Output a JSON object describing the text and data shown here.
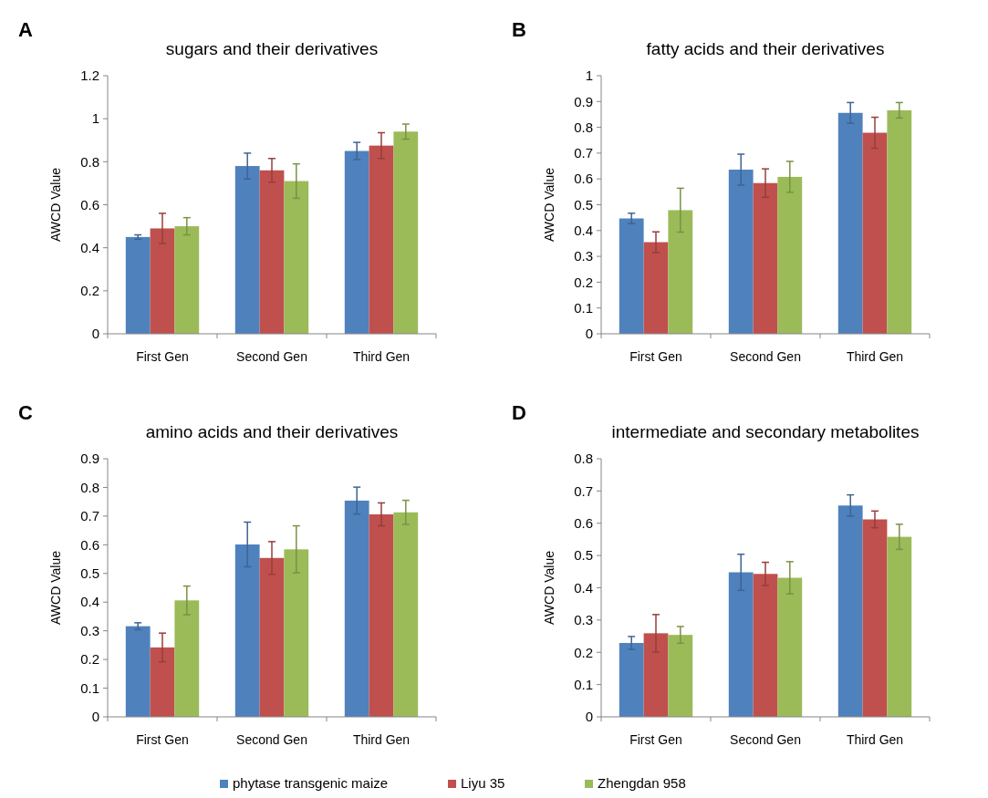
{
  "chart_data": [
    {
      "type": "bar",
      "title": "sugars and their derivatives",
      "ylabel": "AWCD Value",
      "annotations": [
        "A"
      ],
      "categories": [
        "First Gen",
        "Second Gen",
        "Third Gen"
      ],
      "ylim": [
        0,
        1.2
      ],
      "yticks": [
        0,
        0.2,
        0.4,
        0.6,
        0.8,
        1,
        1.2
      ],
      "grid": false,
      "legend": "bottom",
      "series": [
        {
          "name": "phytase transgenic maize",
          "color": "#4f81bd",
          "values": [
            0.45,
            0.78,
            0.85
          ],
          "errors": [
            0.01,
            0.06,
            0.04
          ]
        },
        {
          "name": "Liyu 35",
          "color": "#c0504d",
          "values": [
            0.49,
            0.76,
            0.875
          ],
          "errors": [
            0.07,
            0.055,
            0.06
          ]
        },
        {
          "name": "Zhengdan 958",
          "color": "#9bbb59",
          "values": [
            0.5,
            0.71,
            0.94
          ],
          "errors": [
            0.04,
            0.08,
            0.035
          ]
        }
      ]
    },
    {
      "type": "bar",
      "title": "fatty acids and their derivatives",
      "ylabel": "AWCD Value",
      "annotations": [
        "B"
      ],
      "categories": [
        "First Gen",
        "Second Gen",
        "Third Gen"
      ],
      "ylim": [
        0,
        1
      ],
      "yticks": [
        0,
        0.1,
        0.2,
        0.3,
        0.4,
        0.5,
        0.6,
        0.7,
        0.8,
        0.9,
        1
      ],
      "grid": false,
      "legend": false,
      "series": [
        {
          "color": "#4f81bd",
          "values": [
            0.447,
            0.636,
            0.856
          ],
          "errors": [
            0.02,
            0.06,
            0.04
          ]
        },
        {
          "color": "#c0504d",
          "values": [
            0.355,
            0.584,
            0.779
          ],
          "errors": [
            0.04,
            0.055,
            0.06
          ]
        },
        {
          "color": "#9bbb59",
          "values": [
            0.479,
            0.608,
            0.866
          ],
          "errors": [
            0.085,
            0.06,
            0.03
          ]
        }
      ]
    },
    {
      "type": "bar",
      "title": "amino acids and their derivatives",
      "ylabel": "AWCD Value",
      "annotations": [
        "C"
      ],
      "categories": [
        "First Gen",
        "Second Gen",
        "Third Gen"
      ],
      "ylim": [
        0,
        0.9
      ],
      "yticks": [
        0,
        0.1,
        0.2,
        0.3,
        0.4,
        0.5,
        0.6,
        0.7,
        0.8,
        0.9
      ],
      "grid": false,
      "legend": false,
      "series": [
        {
          "color": "#4f81bd",
          "values": [
            0.316,
            0.601,
            0.754
          ],
          "errors": [
            0.012,
            0.078,
            0.047
          ]
        },
        {
          "color": "#c0504d",
          "values": [
            0.242,
            0.554,
            0.706
          ],
          "errors": [
            0.05,
            0.057,
            0.04
          ]
        },
        {
          "color": "#9bbb59",
          "values": [
            0.406,
            0.584,
            0.713
          ],
          "errors": [
            0.05,
            0.082,
            0.042
          ]
        }
      ]
    },
    {
      "type": "bar",
      "title": "intermediate and secondary metabolites",
      "ylabel": "AWCD Value",
      "annotations": [
        "D"
      ],
      "categories": [
        "First Gen",
        "Second Gen",
        "Third Gen"
      ],
      "ylim": [
        0,
        0.8
      ],
      "yticks": [
        0,
        0.1,
        0.2,
        0.3,
        0.4,
        0.5,
        0.6,
        0.7,
        0.8
      ],
      "grid": false,
      "legend": false,
      "series": [
        {
          "color": "#4f81bd",
          "values": [
            0.229,
            0.448,
            0.655
          ],
          "errors": [
            0.02,
            0.056,
            0.033
          ]
        },
        {
          "color": "#c0504d",
          "values": [
            0.259,
            0.443,
            0.612
          ],
          "errors": [
            0.058,
            0.036,
            0.026
          ]
        },
        {
          "color": "#9bbb59",
          "values": [
            0.254,
            0.431,
            0.558
          ],
          "errors": [
            0.026,
            0.05,
            0.039
          ]
        }
      ]
    }
  ]
}
